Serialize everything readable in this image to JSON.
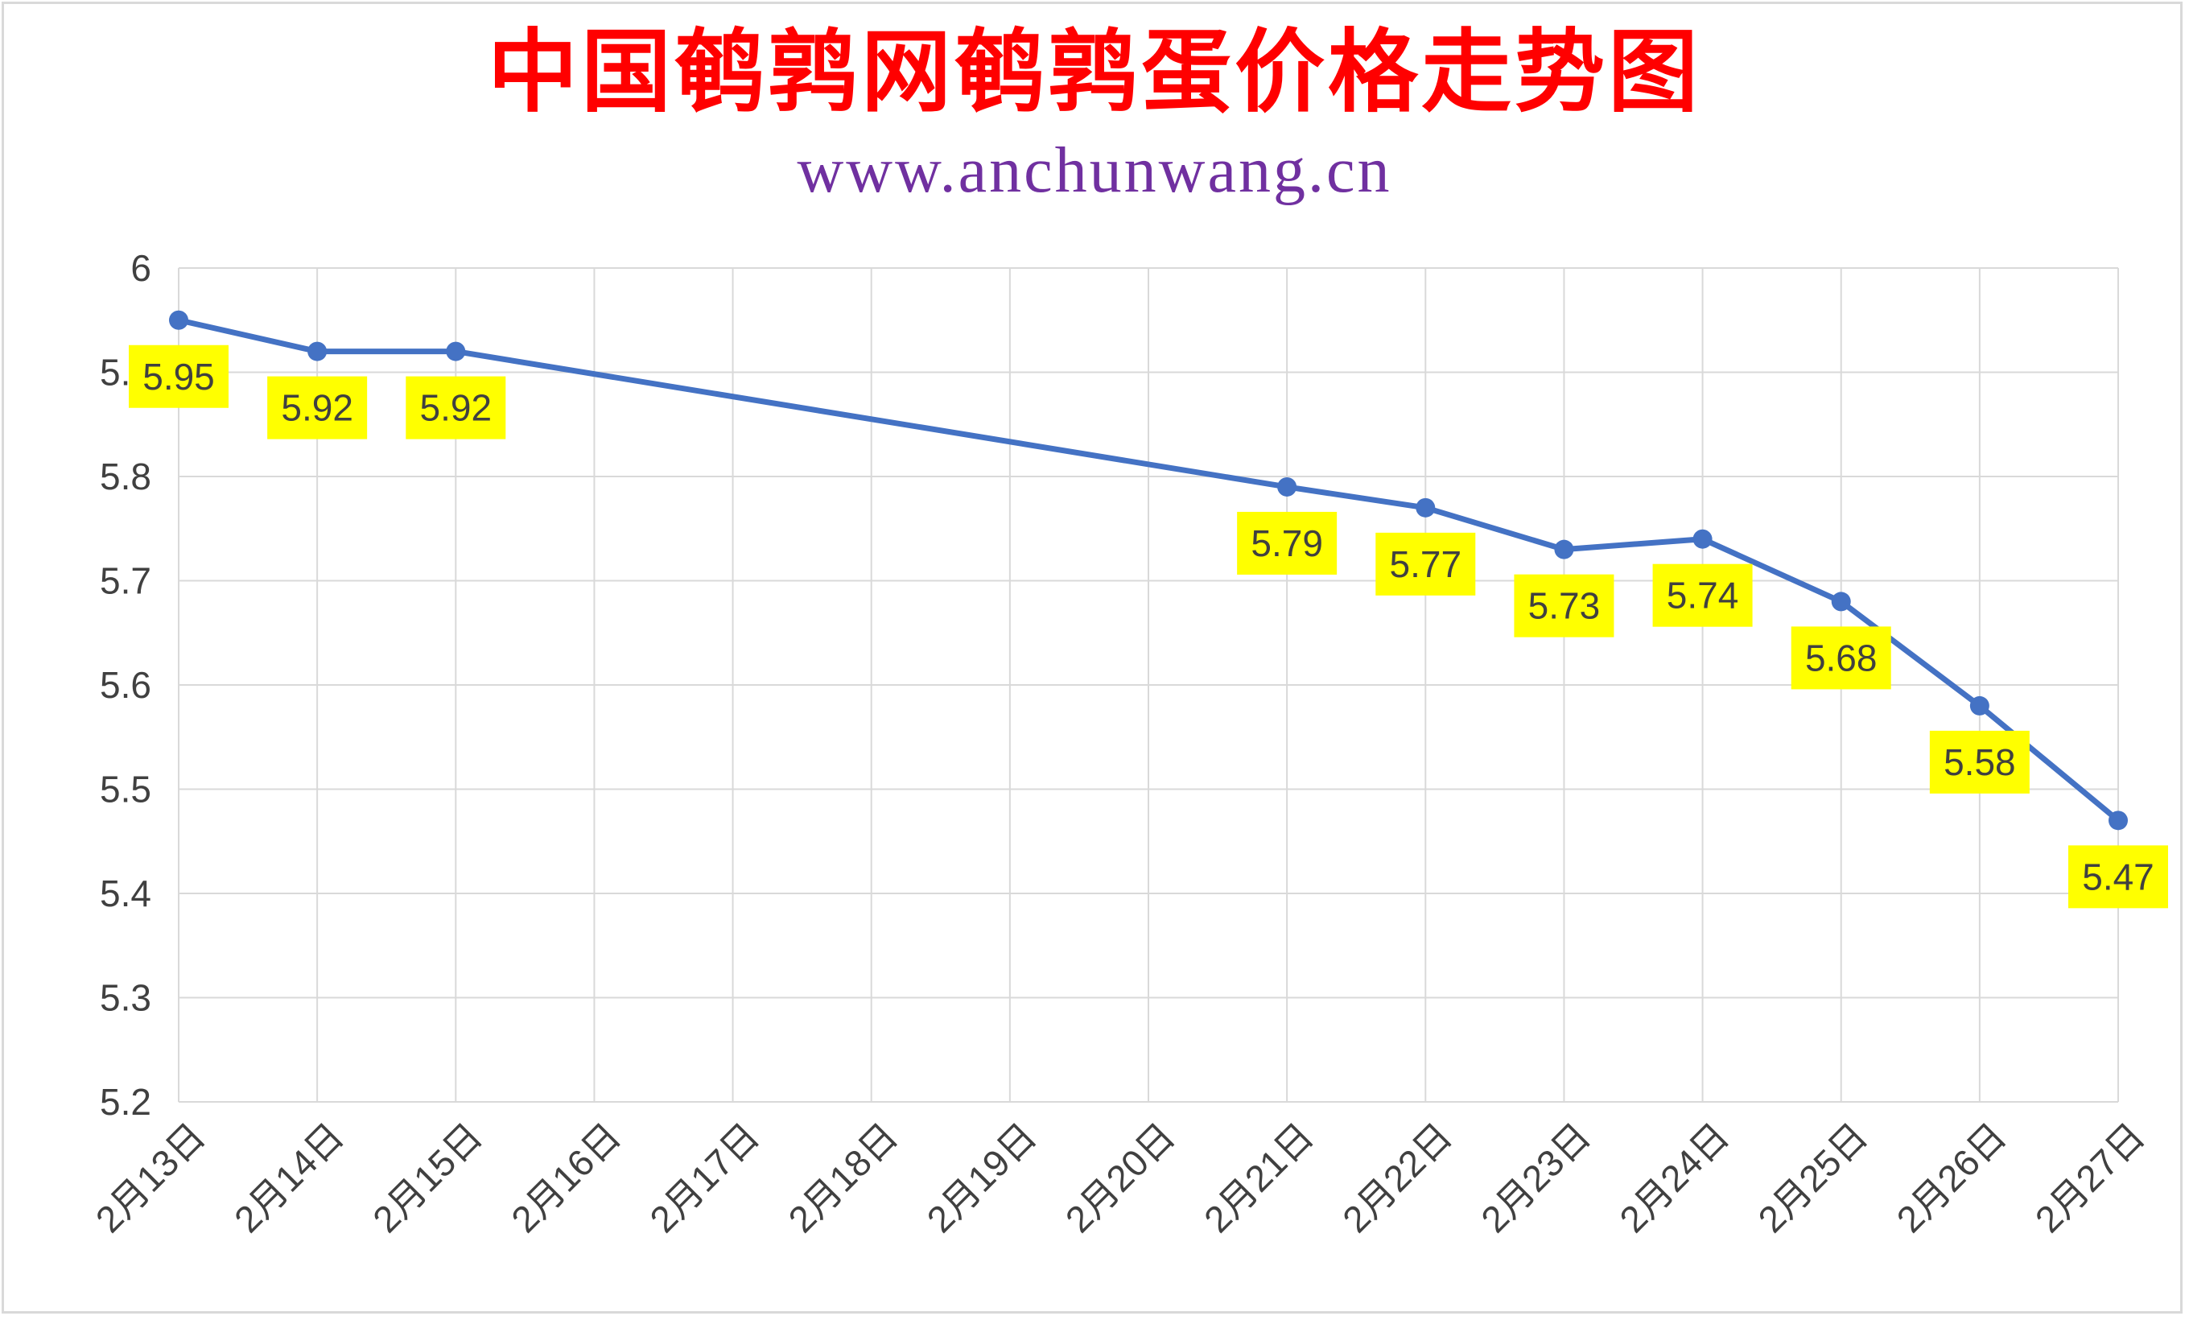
{
  "title": "中国鹌鹑网鹌鹑蛋价格走势图",
  "subtitle": "www.anchunwang.cn",
  "colors": {
    "title": "#ff0000",
    "subtitle": "#7030a0",
    "line": "#4472c4",
    "label_bg": "#ffff00",
    "grid": "#d9d9d9"
  },
  "chart_data": {
    "type": "line",
    "title": "中国鹌鹑网鹌鹑蛋价格走势图",
    "subtitle": "www.anchunwang.cn",
    "categories": [
      "2月13日",
      "2月14日",
      "2月15日",
      "2月16日",
      "2月17日",
      "2月18日",
      "2月19日",
      "2月20日",
      "2月21日",
      "2月22日",
      "2月23日",
      "2月24日",
      "2月25日",
      "2月26日",
      "2月27日"
    ],
    "y_ticks": [
      "5.2",
      "5.3",
      "5.4",
      "5.5",
      "5.6",
      "5.7",
      "5.8",
      "5.9",
      "6"
    ],
    "ylim": [
      5.2,
      6
    ],
    "grid": true,
    "legend": "none",
    "series": [
      {
        "values": [
          5.95,
          5.92,
          5.92,
          null,
          null,
          null,
          null,
          null,
          5.79,
          5.77,
          5.73,
          5.74,
          5.68,
          5.58,
          5.47
        ],
        "labels": [
          "5.95",
          "5.92",
          "5.92",
          "",
          "",
          "",
          "",
          "",
          "5.79",
          "5.77",
          "5.73",
          "5.74",
          "5.68",
          "5.58",
          "5.47"
        ]
      }
    ]
  }
}
